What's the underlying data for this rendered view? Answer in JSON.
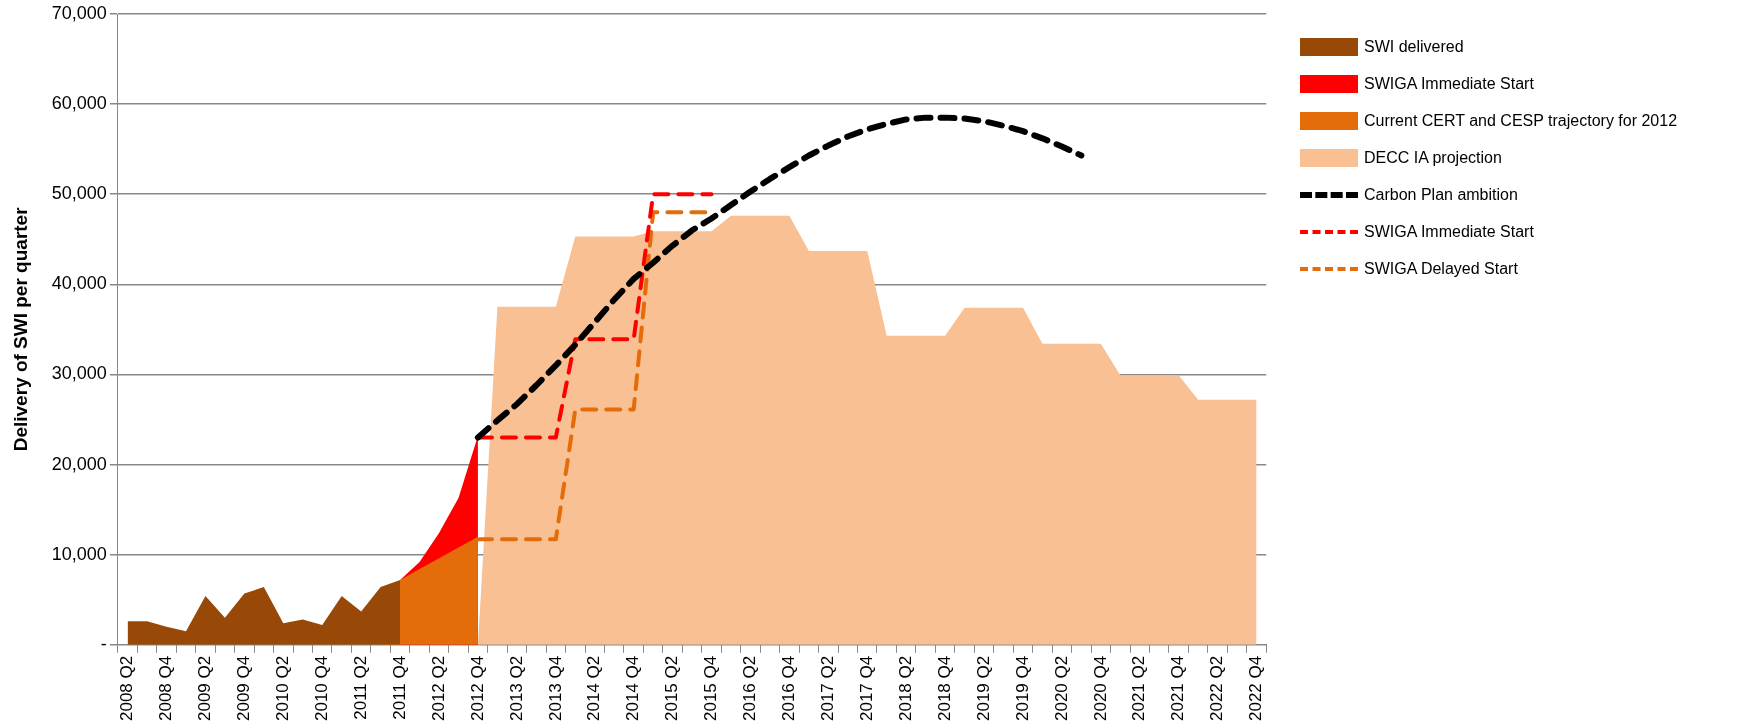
{
  "chart_data": {
    "type": "area",
    "ylabel": "Delivery of SWI per quarter",
    "categories": [
      "2008 Q2",
      null,
      "2008 Q4",
      null,
      "2009 Q2",
      null,
      "2009 Q4",
      null,
      "2010 Q2",
      null,
      "2010 Q4",
      null,
      "2011 Q2",
      null,
      "2011 Q4",
      null,
      "2012 Q2",
      null,
      "2012 Q4",
      null,
      "2013 Q2",
      null,
      "2013 Q4",
      null,
      "2014 Q2",
      null,
      "2014 Q4",
      null,
      "2015 Q2",
      null,
      "2015 Q4",
      null,
      "2016 Q2",
      null,
      "2016 Q4",
      null,
      "2017 Q2",
      null,
      "2017 Q4",
      null,
      "2018 Q2",
      null,
      "2018 Q4",
      null,
      "2019 Q2",
      null,
      "2019 Q4",
      null,
      "2020 Q2",
      null,
      "2020 Q4",
      null,
      "2021 Q2",
      null,
      "2021 Q4",
      null,
      "2022 Q2",
      null,
      "2022 Q4"
    ],
    "series": [
      {
        "name": "SWI delivered",
        "color": "#984807",
        "values": [
          2600,
          2600,
          2000,
          1500,
          5400,
          3000,
          5700,
          6400,
          2400,
          2800,
          2200,
          5400,
          3700,
          6400,
          7200,
          null,
          null,
          null,
          null,
          null,
          null,
          null,
          null,
          null,
          null,
          null,
          null,
          null,
          null,
          null,
          null,
          null,
          null,
          null,
          null,
          null,
          null,
          null,
          null,
          null,
          null,
          null,
          null,
          null,
          null,
          null,
          null,
          null,
          null,
          null,
          null,
          null,
          null,
          null,
          null,
          null,
          null,
          null,
          null
        ]
      },
      {
        "name": "SWIGA Immediate Start",
        "color": "#ff0000",
        "values": [
          null,
          null,
          null,
          null,
          null,
          null,
          null,
          null,
          null,
          null,
          null,
          null,
          null,
          null,
          7200,
          9200,
          12400,
          16300,
          23200,
          null,
          null,
          null,
          null,
          null,
          null,
          null,
          null,
          null,
          null,
          null,
          null,
          null,
          null,
          null,
          null,
          null,
          null,
          null,
          null,
          null,
          null,
          null,
          null,
          null,
          null,
          null,
          null,
          null,
          null,
          null,
          null,
          null,
          null,
          null,
          null,
          null,
          null,
          null,
          null
        ]
      },
      {
        "name": "Current CERT and CESP trajectory for 2012",
        "color": "#e46c0a",
        "values": [
          null,
          null,
          null,
          null,
          null,
          null,
          null,
          null,
          null,
          null,
          null,
          null,
          null,
          0,
          7200,
          8400,
          9600,
          10800,
          12000,
          null,
          null,
          null,
          null,
          null,
          null,
          null,
          null,
          null,
          null,
          null,
          null,
          null,
          null,
          null,
          null,
          null,
          null,
          null,
          null,
          null,
          null,
          null,
          null,
          null,
          null,
          null,
          null,
          null,
          null,
          null,
          null,
          null,
          null,
          null,
          null,
          null,
          null,
          null,
          null
        ]
      },
      {
        "name": "DECC IA projection",
        "color": "#f8c093",
        "values": [
          null,
          null,
          null,
          null,
          null,
          null,
          null,
          null,
          null,
          null,
          null,
          null,
          null,
          null,
          null,
          null,
          null,
          null,
          0,
          37500,
          37500,
          37500,
          37500,
          45300,
          45300,
          45300,
          45300,
          45900,
          45900,
          45900,
          45900,
          47600,
          47600,
          47600,
          47600,
          43700,
          43700,
          43700,
          43700,
          34300,
          34300,
          34300,
          34300,
          37400,
          37400,
          37400,
          37400,
          33400,
          33400,
          33400,
          33400,
          29900,
          29900,
          29900,
          29900,
          27200,
          27200,
          27200,
          27200
        ]
      },
      {
        "name": "Carbon Plan ambition",
        "type": "line",
        "line_style": "dashed",
        "color": "#000000",
        "values": [
          null,
          null,
          null,
          null,
          null,
          null,
          null,
          null,
          null,
          null,
          null,
          null,
          null,
          null,
          null,
          null,
          null,
          null,
          23000,
          24900,
          26700,
          28800,
          31000,
          33300,
          35800,
          38300,
          40600,
          42400,
          44300,
          46000,
          47300,
          48800,
          50300,
          51700,
          53000,
          54300,
          55400,
          56400,
          57200,
          57800,
          58300,
          58500,
          58500,
          58400,
          58100,
          57600,
          57000,
          56200,
          55300,
          54300,
          null,
          null,
          null,
          null,
          null,
          null,
          null,
          null,
          null
        ]
      },
      {
        "name": "SWIGA Immediate Start",
        "type": "line",
        "line_style": "dashed",
        "color": "#ff0000",
        "values": [
          null,
          null,
          null,
          null,
          null,
          null,
          null,
          null,
          null,
          null,
          null,
          null,
          null,
          null,
          null,
          null,
          null,
          null,
          23000,
          23000,
          23000,
          23000,
          23000,
          33900,
          33900,
          33900,
          33900,
          50000,
          50000,
          50000,
          50000,
          null,
          null,
          null,
          null,
          null,
          null,
          null,
          null,
          null,
          null,
          null,
          null,
          null,
          null,
          null,
          null,
          null,
          null,
          null,
          null,
          null,
          null,
          null,
          null,
          null,
          null,
          null,
          null
        ]
      },
      {
        "name": "SWIGA Delayed Start",
        "type": "line",
        "line_style": "dashed",
        "color": "#e46c0a",
        "values": [
          null,
          null,
          null,
          null,
          null,
          null,
          null,
          null,
          null,
          null,
          null,
          null,
          null,
          null,
          null,
          null,
          null,
          null,
          11700,
          11700,
          11700,
          11700,
          11700,
          26100,
          26100,
          26100,
          26100,
          48000,
          48000,
          48000,
          48000,
          null,
          null,
          null,
          null,
          null,
          null,
          null,
          null,
          null,
          null,
          null,
          null,
          null,
          null,
          null,
          null,
          null,
          null,
          null,
          null,
          null,
          null,
          null,
          null,
          null,
          null,
          null,
          null
        ]
      }
    ],
    "ylim": [
      0,
      70000
    ],
    "yticks": [
      {
        "value": 0,
        "label": "-"
      },
      {
        "value": 10000,
        "label": "10,000"
      },
      {
        "value": 20000,
        "label": "20,000"
      },
      {
        "value": 30000,
        "label": "30,000"
      },
      {
        "value": 40000,
        "label": "40,000"
      },
      {
        "value": 50000,
        "label": "50,000"
      },
      {
        "value": 60000,
        "label": "60,000"
      },
      {
        "value": 70000,
        "label": "70,000"
      }
    ],
    "grid": "y",
    "legend": "right"
  }
}
